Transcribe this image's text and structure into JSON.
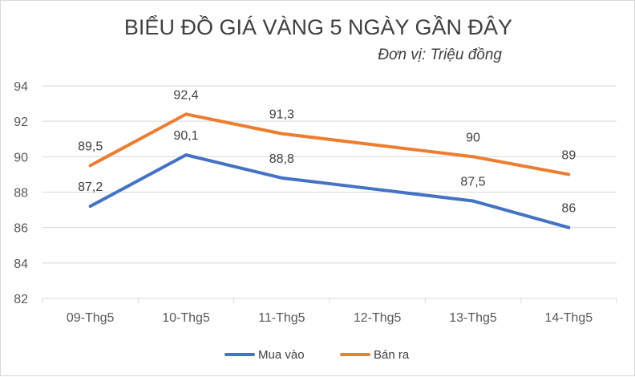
{
  "chart_data": {
    "type": "line",
    "title": "BIỂU ĐỒ GIÁ VÀNG 5 NGÀY GẦN ĐÂY",
    "subtitle": "Đơn vị: Triệu đồng",
    "xlabel": "",
    "ylabel": "",
    "categories": [
      "09-Thg5",
      "10-Thg5",
      "11-Thg5",
      "12-Thg5",
      "13-Thg5",
      "14-Thg5"
    ],
    "ylim": [
      82,
      94
    ],
    "yticks": [
      82,
      84,
      86,
      88,
      90,
      92,
      94
    ],
    "grid": true,
    "legend_position": "bottom",
    "series": [
      {
        "name": "Mua vào",
        "color": "#4472c4",
        "values": [
          87.2,
          90.1,
          88.8,
          null,
          87.5,
          86
        ],
        "data_labels": [
          "87,2",
          "90,1",
          "88,8",
          "",
          "87,5",
          "86"
        ]
      },
      {
        "name": "Bán ra",
        "color": "#ed7d31",
        "values": [
          89.5,
          92.4,
          91.3,
          null,
          90,
          89
        ],
        "data_labels": [
          "89,5",
          "92,4",
          "91,3",
          "",
          "90",
          "89"
        ]
      }
    ]
  }
}
